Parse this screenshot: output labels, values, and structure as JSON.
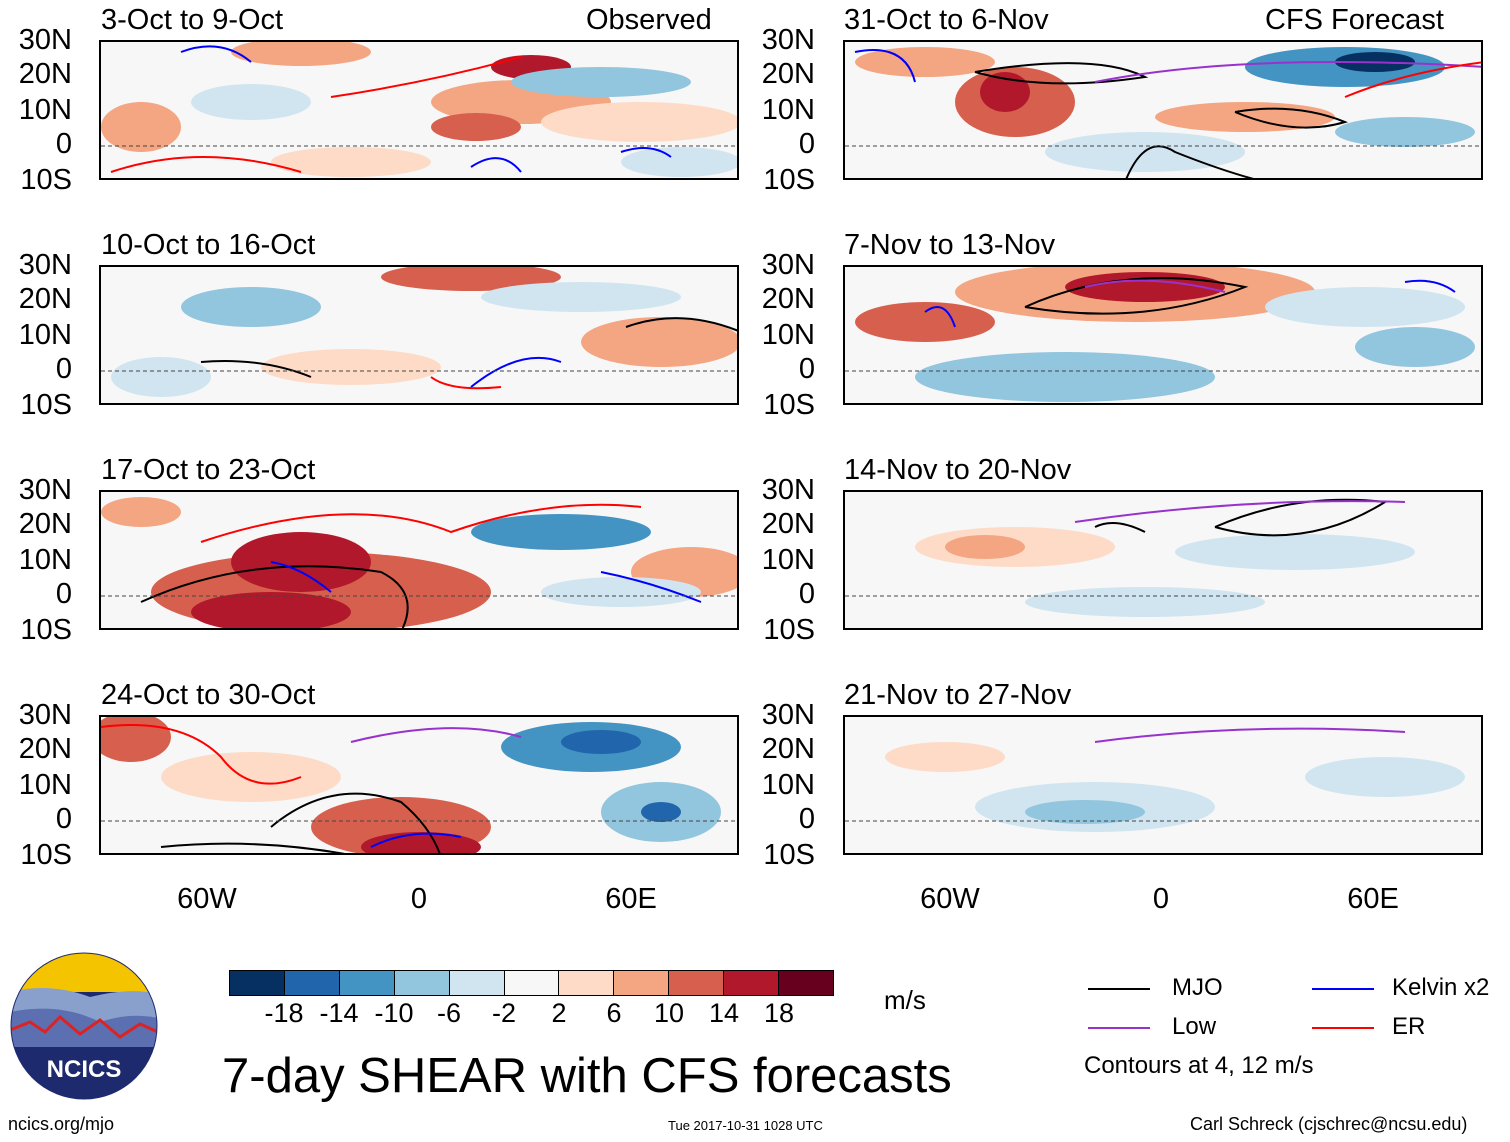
{
  "title": "7-day SHEAR with CFS forecasts",
  "units": "m/s",
  "observed_label": "Observed",
  "forecast_label": "CFS Forecast",
  "panels_left": [
    {
      "title": "3-Oct to 9-Oct"
    },
    {
      "title": "10-Oct to 16-Oct"
    },
    {
      "title": "17-Oct to 23-Oct"
    },
    {
      "title": "24-Oct to 30-Oct"
    }
  ],
  "panels_right": [
    {
      "title": "31-Oct to 6-Nov"
    },
    {
      "title": "7-Nov to 13-Nov"
    },
    {
      "title": "14-Nov to 20-Nov"
    },
    {
      "title": "21-Nov to 27-Nov"
    }
  ],
  "lat_labels": [
    "30N",
    "20N",
    "10N",
    "0",
    "10S"
  ],
  "lon_labels": [
    "60W",
    "0",
    "60E"
  ],
  "colorbar": {
    "labels": [
      "-18",
      "-14",
      "-10",
      "-6",
      "-2",
      "2",
      "6",
      "10",
      "14",
      "18"
    ],
    "colors": [
      "#053061",
      "#2166ac",
      "#4393c3",
      "#92c5de",
      "#d1e5f0",
      "#f7f7f7",
      "#fddbc7",
      "#f4a582",
      "#d6604d",
      "#b2182b",
      "#67001f"
    ]
  },
  "legend": {
    "items": [
      {
        "label": "MJO",
        "color": "#000000"
      },
      {
        "label": "Kelvin x2",
        "color": "#0000ff"
      },
      {
        "label": "Low",
        "color": "#9932cc"
      },
      {
        "label": "ER",
        "color": "#ff0000"
      }
    ],
    "contours_note": "Contours at 4, 12 m/s"
  },
  "logo_text": "NCICS",
  "footer": {
    "url": "ncics.org/mjo",
    "timestamp": "Tue 2017-10-31 1028 UTC",
    "author": "Carl Schreck (cjschrec@ncsu.edu)"
  }
}
